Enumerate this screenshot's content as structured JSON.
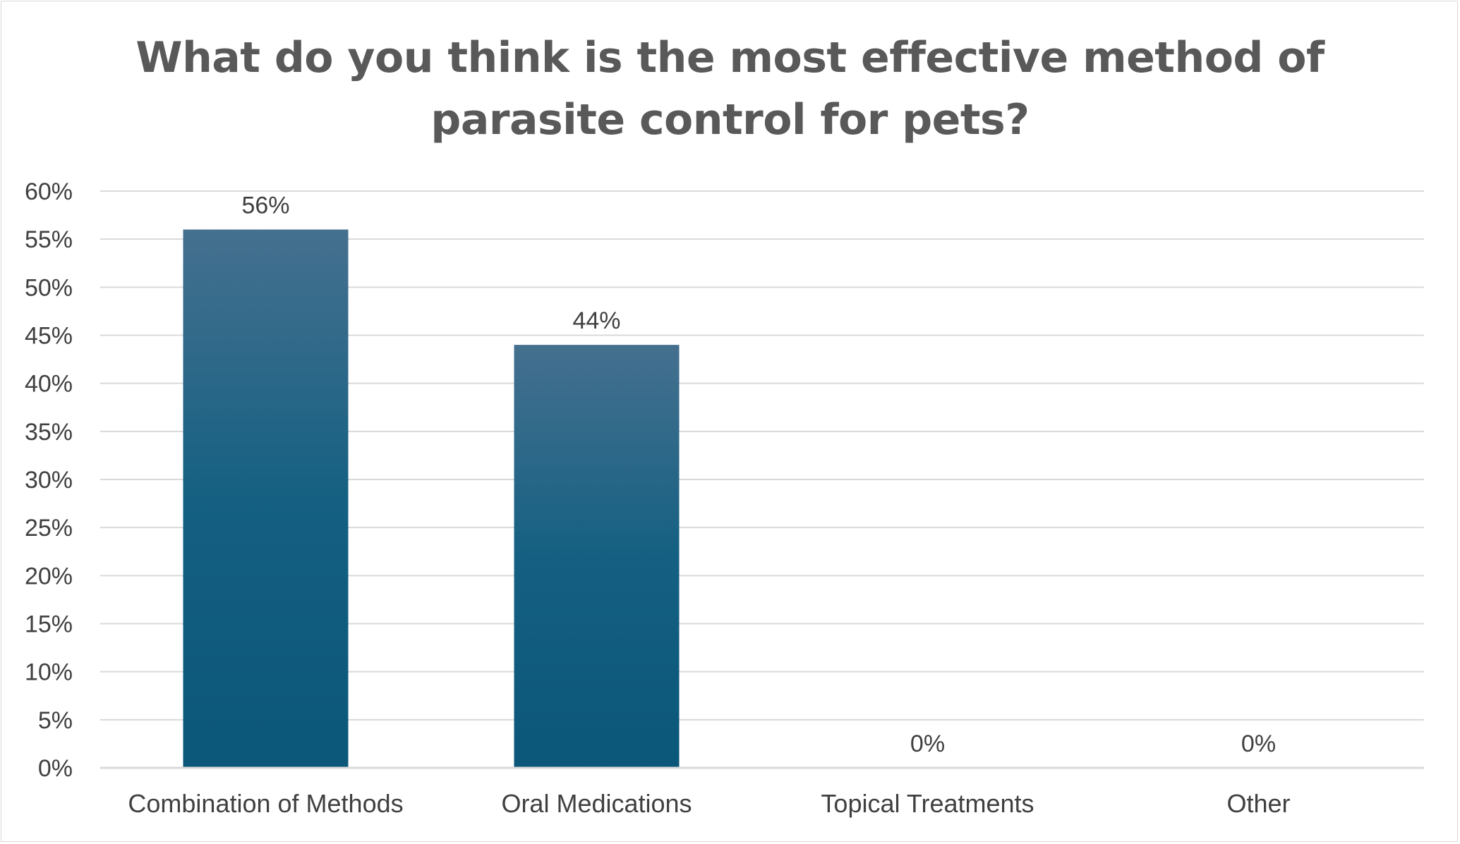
{
  "chart_data": {
    "type": "bar",
    "title_lines": [
      "What do you think is the most effective method of",
      "parasite control for pets?"
    ],
    "categories": [
      "Combination of Methods",
      "Oral Medications",
      "Topical Treatments",
      "Other"
    ],
    "values": [
      56,
      44,
      0,
      0
    ],
    "data_labels": [
      "56%",
      "44%",
      "0%",
      "0%"
    ],
    "ylim": [
      0,
      60
    ],
    "ytick_step": 5,
    "ytick_labels": [
      "0%",
      "5%",
      "10%",
      "15%",
      "20%",
      "25%",
      "30%",
      "35%",
      "40%",
      "45%",
      "50%",
      "55%",
      "60%"
    ],
    "xlabel": "",
    "ylabel": "",
    "grid": true,
    "legend": "none",
    "colors": {
      "bar_top": "#45708f",
      "bar_mid": "#156082",
      "bar_bottom": "#0b5779",
      "gridline": "#d9d9d9",
      "axis_line": "#d9d9d9",
      "text": "#404040",
      "title": "#595959"
    }
  }
}
